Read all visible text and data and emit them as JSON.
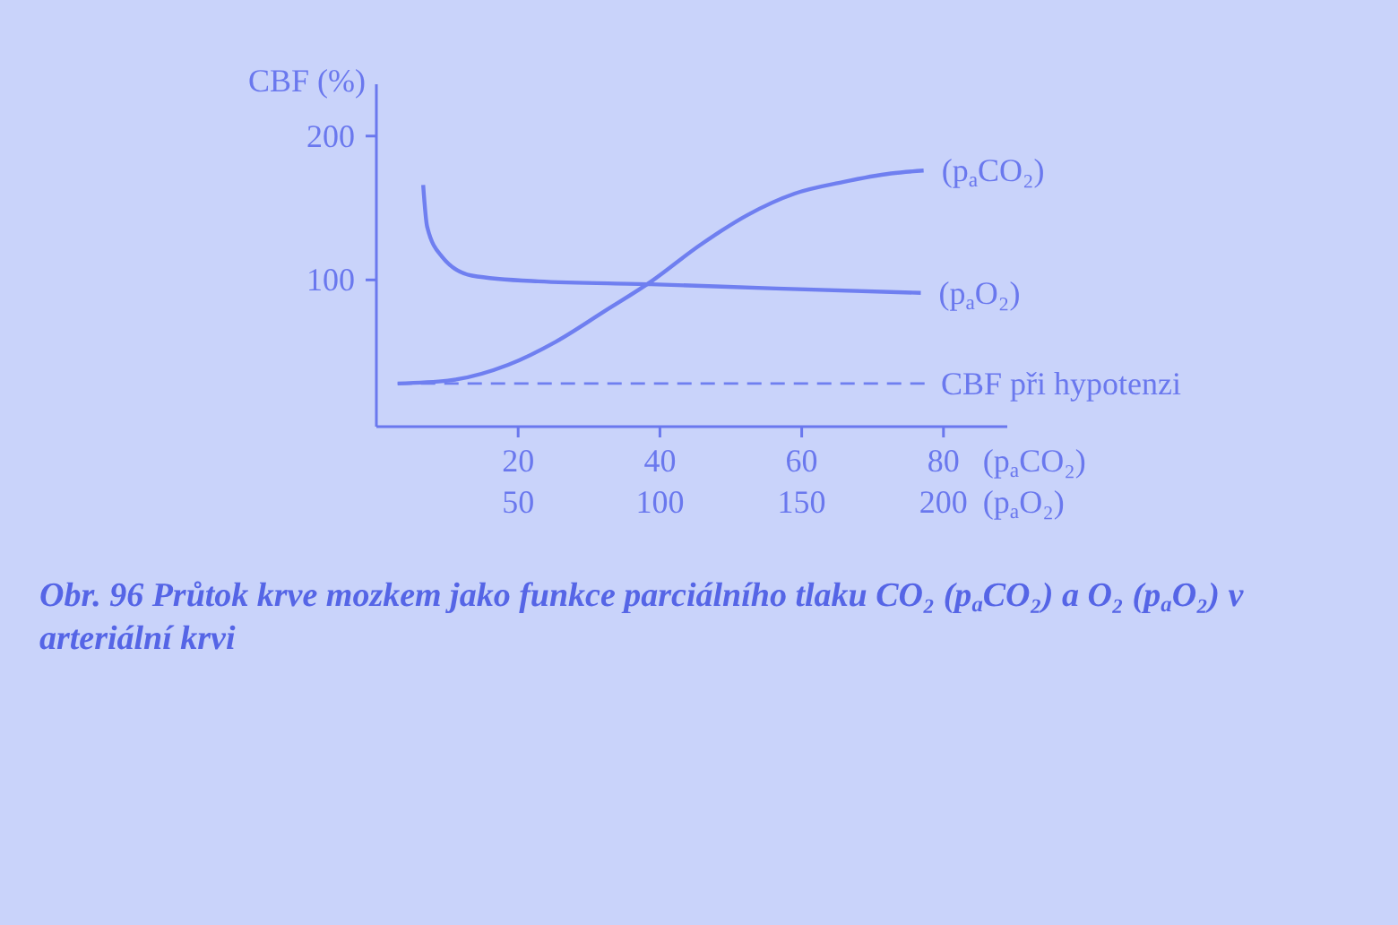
{
  "chart_data": {
    "type": "line",
    "ylabel": "CBF (%)",
    "xlabel": "(p$_{a}$CO₂)",
    "x2label": "(p$_{a}$O₂)",
    "xlim": [
      0,
      89
    ],
    "xticks": [
      20,
      40,
      60,
      80
    ],
    "x2lim": [
      0,
      222.5
    ],
    "x2ticks": [
      50,
      100,
      150,
      200
    ],
    "ylim": [
      -2,
      236
    ],
    "yticks": [
      100,
      200
    ],
    "series": [
      {
        "name": "(p$_{a}$CO₂)",
        "color": "#6f7ff0",
        "x": [
          3,
          10.1,
          18.6,
          25.3,
          32.1,
          38.8,
          45.6,
          52.3,
          59,
          65.8,
          72.6,
          77.2
        ],
        "values": [
          28,
          30,
          41,
          57,
          78,
          99,
          124,
          145,
          160,
          168,
          174,
          176
        ]
      },
      {
        "name": "(p$_{a}$O₂)",
        "color": "#6f7ff0",
        "axis": "x2",
        "x": [
          16.5,
          17.9,
          23.2,
          33.7,
          57,
          97,
          141,
          192
        ],
        "values": [
          166,
          137,
          116,
          103,
          99,
          97,
          94,
          91
        ]
      }
    ],
    "ref_lines": [
      {
        "axis": "y",
        "value": 28,
        "label": "CBF při hypotenzi",
        "color": "#6f7ff0",
        "line_style": "dashed"
      }
    ],
    "annotations": [
      "Obr. 96  Průtok krve mozkem jako funkce parciálního tlaku CO₂ (p$_{a}$CO₂) a O₂ (p$_{a}$O₂) v arteriální krvi"
    ]
  }
}
